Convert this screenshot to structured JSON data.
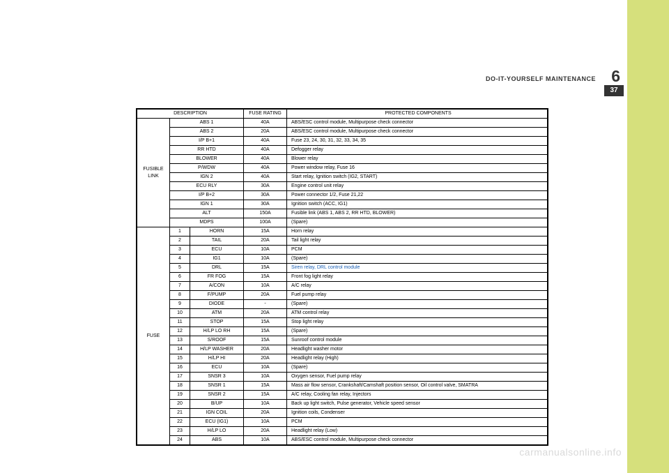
{
  "header": {
    "chapter_title": "DO-IT-YOURSELF MAINTENANCE",
    "chapter_number": "6",
    "page_number": "37"
  },
  "watermark": "carmanualsonline.info",
  "table": {
    "headers": {
      "description": "DESCRIPTION",
      "fuse_rating": "FUSE RATING",
      "protected": "PROTECTED COMPONENTS"
    },
    "group1_label": "FUSIBLE\nLINK",
    "group1": [
      {
        "name": "ABS 1",
        "rating": "40A",
        "desc": "ABS/ESC control module, Multipurpose check connector"
      },
      {
        "name": "ABS 2",
        "rating": "20A",
        "desc": "ABS/ESC control module, Multipurpose check connector"
      },
      {
        "name": "I/P B+1",
        "rating": "40A",
        "desc": "Fuse 23, 24, 30, 31, 32, 33, 34, 35"
      },
      {
        "name": "RR HTD",
        "rating": "40A",
        "desc": "Defogger relay"
      },
      {
        "name": "BLOWER",
        "rating": "40A",
        "desc": "Blower relay"
      },
      {
        "name": "P/WDW",
        "rating": "40A",
        "desc": "Power window relay, Fuse 16"
      },
      {
        "name": "IGN 2",
        "rating": "40A",
        "desc": "Start relay, Ignition switch (IG2, START)"
      },
      {
        "name": "ECU RLY",
        "rating": "30A",
        "desc": "Engine control unit relay"
      },
      {
        "name": "I/P B+2",
        "rating": "30A",
        "desc": "Power connector 1/2, Fuse 21,22"
      },
      {
        "name": "IGN 1",
        "rating": "30A",
        "desc": "Ignition switch (ACC, IG1)"
      },
      {
        "name": "ALT",
        "rating": "150A",
        "desc": "Fusible link (ABS 1, ABS 2, RR HTD, BLOWER)"
      },
      {
        "name": "MDPS",
        "rating": "100A",
        "desc": "(Spare)"
      }
    ],
    "group2_label": "FUSE",
    "group2": [
      {
        "num": "1",
        "name": "HORN",
        "rating": "15A",
        "desc": "Horn relay"
      },
      {
        "num": "2",
        "name": "TAIL",
        "rating": "20A",
        "desc": "Tail light relay"
      },
      {
        "num": "3",
        "name": "ECU",
        "rating": "10A",
        "desc": "PCM"
      },
      {
        "num": "4",
        "name": "IG1",
        "rating": "10A",
        "desc": "(Spare)"
      },
      {
        "num": "5",
        "name": "DRL",
        "rating": "15A",
        "desc": "Siren relay, DRL control module",
        "blue": true
      },
      {
        "num": "6",
        "name": "FR FOG",
        "rating": "15A",
        "desc": "Front fog light relay"
      },
      {
        "num": "7",
        "name": "A/CON",
        "rating": "10A",
        "desc": "A/C relay"
      },
      {
        "num": "8",
        "name": "F/PUMP",
        "rating": "20A",
        "desc": "Fuel pump relay"
      },
      {
        "num": "9",
        "name": "DIODE",
        "rating": "-",
        "desc": "(Spare)"
      },
      {
        "num": "10",
        "name": "ATM",
        "rating": "20A",
        "desc": "ATM control relay"
      },
      {
        "num": "11",
        "name": "STOP",
        "rating": "15A",
        "desc": "Stop light relay"
      },
      {
        "num": "12",
        "name": "H/LP LO RH",
        "rating": "15A",
        "desc": "(Spare)"
      },
      {
        "num": "13",
        "name": "S/ROOF",
        "rating": "15A",
        "desc": "Sunroof control module"
      },
      {
        "num": "14",
        "name": "H/LP WASHER",
        "rating": "20A",
        "desc": "Headlight washer motor"
      },
      {
        "num": "15",
        "name": "H/LP HI",
        "rating": "20A",
        "desc": "Headlight relay (High)"
      },
      {
        "num": "16",
        "name": "ECU",
        "rating": "10A",
        "desc": "(Spare)"
      },
      {
        "num": "17",
        "name": "SNSR 3",
        "rating": "10A",
        "desc": "Oxygen sensor, Fuel pump relay"
      },
      {
        "num": "18",
        "name": "SNSR 1",
        "rating": "15A",
        "desc": "Mass air flow sensor, Crankshaft/Camshaft position sensor, Oil control valve, SMATRA"
      },
      {
        "num": "19",
        "name": "SNSR 2",
        "rating": "15A",
        "desc": "A/C relay, Cooling fan relay, Injectors"
      },
      {
        "num": "20",
        "name": "B/UP",
        "rating": "10A",
        "desc": "Back up light switch, Pulse generator, Vehicle speed sensor"
      },
      {
        "num": "21",
        "name": "IGN COIL",
        "rating": "20A",
        "desc": "Ignition coils, Condenser"
      },
      {
        "num": "22",
        "name": "ECU (IG1)",
        "rating": "10A",
        "desc": "PCM"
      },
      {
        "num": "23",
        "name": "H/LP LO",
        "rating": "20A",
        "desc": "Headlight relay (Low)"
      },
      {
        "num": "24",
        "name": "ABS",
        "rating": "10A",
        "desc": "ABS/ESC control module, Multipurpose check connector"
      }
    ]
  }
}
